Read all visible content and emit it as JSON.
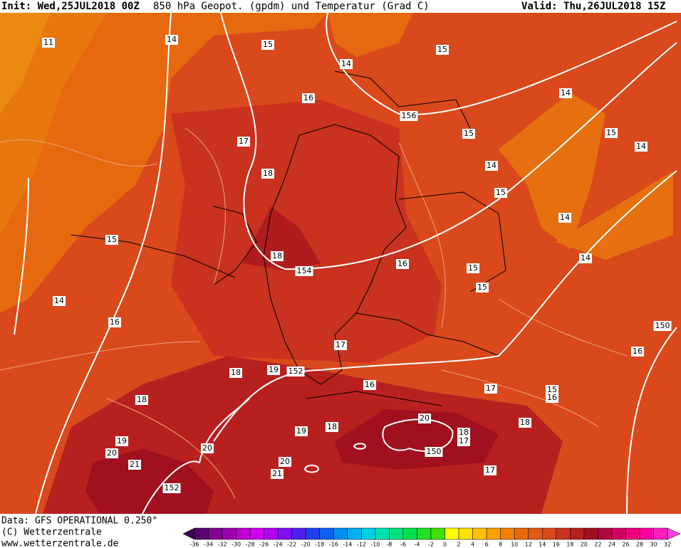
{
  "header": {
    "init": "Init: Wed,25JUL2018 00Z",
    "title": "850 hPa Geopot. (gpdm) und Temperatur (Grad C)",
    "valid": "Valid: Thu,26JUL2018 15Z"
  },
  "footer": {
    "data": "Data: GFS OPERATIONAL 0.250°",
    "copyright": "(C) Wetterzentrale",
    "url": "www.wetterzentrale.de"
  },
  "map": {
    "labels": [
      "11",
      "14",
      "15",
      "15",
      "14",
      "16",
      "14",
      "156",
      "15",
      "15",
      "17",
      "14",
      "18",
      "14",
      "15",
      "14",
      "15",
      "18",
      "154",
      "16",
      "15",
      "14",
      "15",
      "14",
      "16",
      "150",
      "17",
      "16",
      "18",
      "19",
      "152",
      "16",
      "17",
      "15",
      "16",
      "18",
      "20",
      "18",
      "19",
      "18",
      "17",
      "18",
      "19",
      "20",
      "20",
      "150",
      "21",
      "20",
      "17",
      "21",
      "152"
    ]
  },
  "colorbar": {
    "labels": [
      -36,
      -34,
      -32,
      -30,
      -28,
      -26,
      -24,
      -22,
      -20,
      -18,
      -16,
      -14,
      -12,
      -10,
      -8,
      -6,
      -4,
      -2,
      0,
      2,
      4,
      6,
      8,
      10,
      12,
      14,
      16,
      18,
      20,
      22,
      24,
      26,
      28,
      30,
      32
    ],
    "colors": [
      "#3c0050",
      "#5a006e",
      "#800090",
      "#a000b0",
      "#c000d0",
      "#d000f0",
      "#b000f0",
      "#8010f0",
      "#5020f0",
      "#2040f0",
      "#1060f0",
      "#0090f0",
      "#00b0f0",
      "#00d0e0",
      "#00e0b0",
      "#00e080",
      "#00e050",
      "#20e020",
      "#40e000",
      "#ffff00",
      "#ffe000",
      "#ffc000",
      "#ffa000",
      "#f08000",
      "#e86a10",
      "#e05a18",
      "#d8481c",
      "#c8321e",
      "#b82020",
      "#a01020",
      "#b00840",
      "#d00060",
      "#f00080",
      "#ff00a0",
      "#ff20c0",
      "#ff40e0"
    ]
  }
}
